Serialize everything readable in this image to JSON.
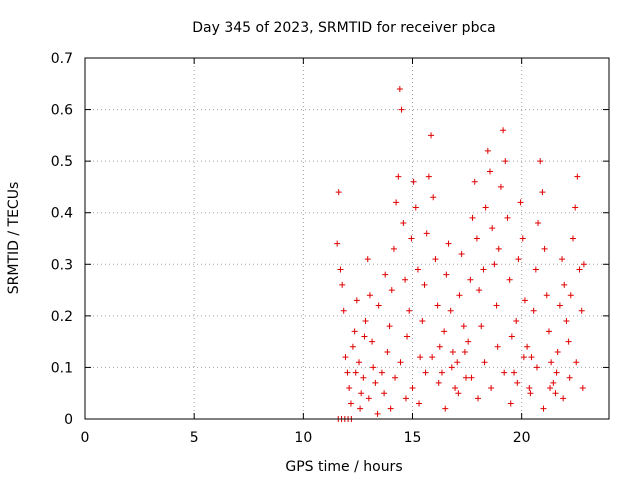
{
  "chart_data": {
    "type": "scatter",
    "title": "Day 345 of 2023, SRMTID for receiver pbca",
    "xlabel": "GPS time / hours",
    "ylabel": "SRMTID / TECUs",
    "xlim": [
      0,
      24
    ],
    "ylim": [
      0,
      0.7
    ],
    "xticks": [
      0,
      5,
      10,
      15,
      20
    ],
    "xtick_labels": [
      "0",
      "5",
      "10",
      "15",
      "20"
    ],
    "yticks": [
      0,
      0.1,
      0.2,
      0.3,
      0.4,
      0.5,
      0.6,
      0.7
    ],
    "ytick_labels": [
      "0",
      "0.1",
      "0.2",
      "0.3",
      "0.4",
      "0.5",
      "0.6",
      "0.7"
    ],
    "grid": true,
    "marker": "+",
    "color": "#e00000",
    "series": [
      {
        "name": "SRMTID",
        "x": [
          11.55,
          11.62,
          11.7,
          11.78,
          11.85,
          11.93,
          12.02,
          12.1,
          12.18,
          12.27,
          12.35,
          12.45,
          12.55,
          12.65,
          12.75,
          12.85,
          12.95,
          13.05,
          13.15,
          13.3,
          13.45,
          13.6,
          13.75,
          13.85,
          13.95,
          14.05,
          14.15,
          14.25,
          14.35,
          14.42,
          14.5,
          14.58,
          14.66,
          14.75,
          14.85,
          14.95,
          15.05,
          15.15,
          15.25,
          15.35,
          15.45,
          15.55,
          15.65,
          15.75,
          15.85,
          15.95,
          16.05,
          16.15,
          16.25,
          16.35,
          16.45,
          16.55,
          16.65,
          16.75,
          16.85,
          16.95,
          17.05,
          17.15,
          17.25,
          17.35,
          17.45,
          17.55,
          17.65,
          17.75,
          17.85,
          17.95,
          18.05,
          18.15,
          18.25,
          18.35,
          18.45,
          18.55,
          18.65,
          18.75,
          18.85,
          18.95,
          19.05,
          19.15,
          19.25,
          19.35,
          19.45,
          19.55,
          19.65,
          19.75,
          19.85,
          19.95,
          20.05,
          20.15,
          20.25,
          20.35,
          20.45,
          20.55,
          20.65,
          20.75,
          20.85,
          20.95,
          21.05,
          21.15,
          21.25,
          21.35,
          21.45,
          21.55,
          21.65,
          21.75,
          21.85,
          21.95,
          22.05,
          22.15,
          22.25,
          22.35,
          22.45,
          22.55,
          22.65,
          22.75,
          22.85,
          11.6,
          11.75,
          11.9,
          12.05,
          12.2,
          12.4,
          12.6,
          12.8,
          13.0,
          13.2,
          13.4,
          13.7,
          14.0,
          14.2,
          14.45,
          14.7,
          15.0,
          15.3,
          15.6,
          15.9,
          16.2,
          16.5,
          16.8,
          17.1,
          17.4,
          17.7,
          18.0,
          18.3,
          18.6,
          18.9,
          19.2,
          19.5,
          19.8,
          20.1,
          20.4,
          20.7,
          21.0,
          21.3,
          21.6,
          21.9,
          22.2,
          22.5,
          22.8
        ],
        "y": [
          0.34,
          0.44,
          0.29,
          0.26,
          0.21,
          0.12,
          0.09,
          0.06,
          0.03,
          0.14,
          0.17,
          0.23,
          0.11,
          0.05,
          0.08,
          0.19,
          0.31,
          0.24,
          0.15,
          0.07,
          0.22,
          0.09,
          0.28,
          0.13,
          0.18,
          0.25,
          0.33,
          0.42,
          0.47,
          0.64,
          0.6,
          0.38,
          0.27,
          0.16,
          0.21,
          0.35,
          0.46,
          0.41,
          0.29,
          0.12,
          0.19,
          0.26,
          0.36,
          0.47,
          0.55,
          0.43,
          0.31,
          0.22,
          0.14,
          0.09,
          0.17,
          0.28,
          0.34,
          0.21,
          0.13,
          0.06,
          0.11,
          0.24,
          0.32,
          0.18,
          0.08,
          0.15,
          0.27,
          0.39,
          0.46,
          0.35,
          0.25,
          0.18,
          0.29,
          0.41,
          0.52,
          0.48,
          0.37,
          0.3,
          0.22,
          0.33,
          0.45,
          0.56,
          0.5,
          0.39,
          0.27,
          0.16,
          0.09,
          0.19,
          0.31,
          0.42,
          0.35,
          0.23,
          0.14,
          0.06,
          0.12,
          0.21,
          0.29,
          0.38,
          0.5,
          0.44,
          0.33,
          0.24,
          0.17,
          0.11,
          0.07,
          0.05,
          0.13,
          0.22,
          0.31,
          0.26,
          0.19,
          0.15,
          0.24,
          0.35,
          0.41,
          0.47,
          0.29,
          0.21,
          0.3,
          0.0,
          0.0,
          0.0,
          0.0,
          0.0,
          0.09,
          0.02,
          0.16,
          0.04,
          0.1,
          0.01,
          0.05,
          0.02,
          0.08,
          0.11,
          0.04,
          0.06,
          0.03,
          0.09,
          0.12,
          0.07,
          0.02,
          0.1,
          0.05,
          0.13,
          0.08,
          0.04,
          0.11,
          0.06,
          0.14,
          0.09,
          0.03,
          0.07,
          0.12,
          0.05,
          0.1,
          0.02,
          0.06,
          0.09,
          0.04,
          0.08,
          0.11,
          0.06
        ]
      }
    ]
  }
}
